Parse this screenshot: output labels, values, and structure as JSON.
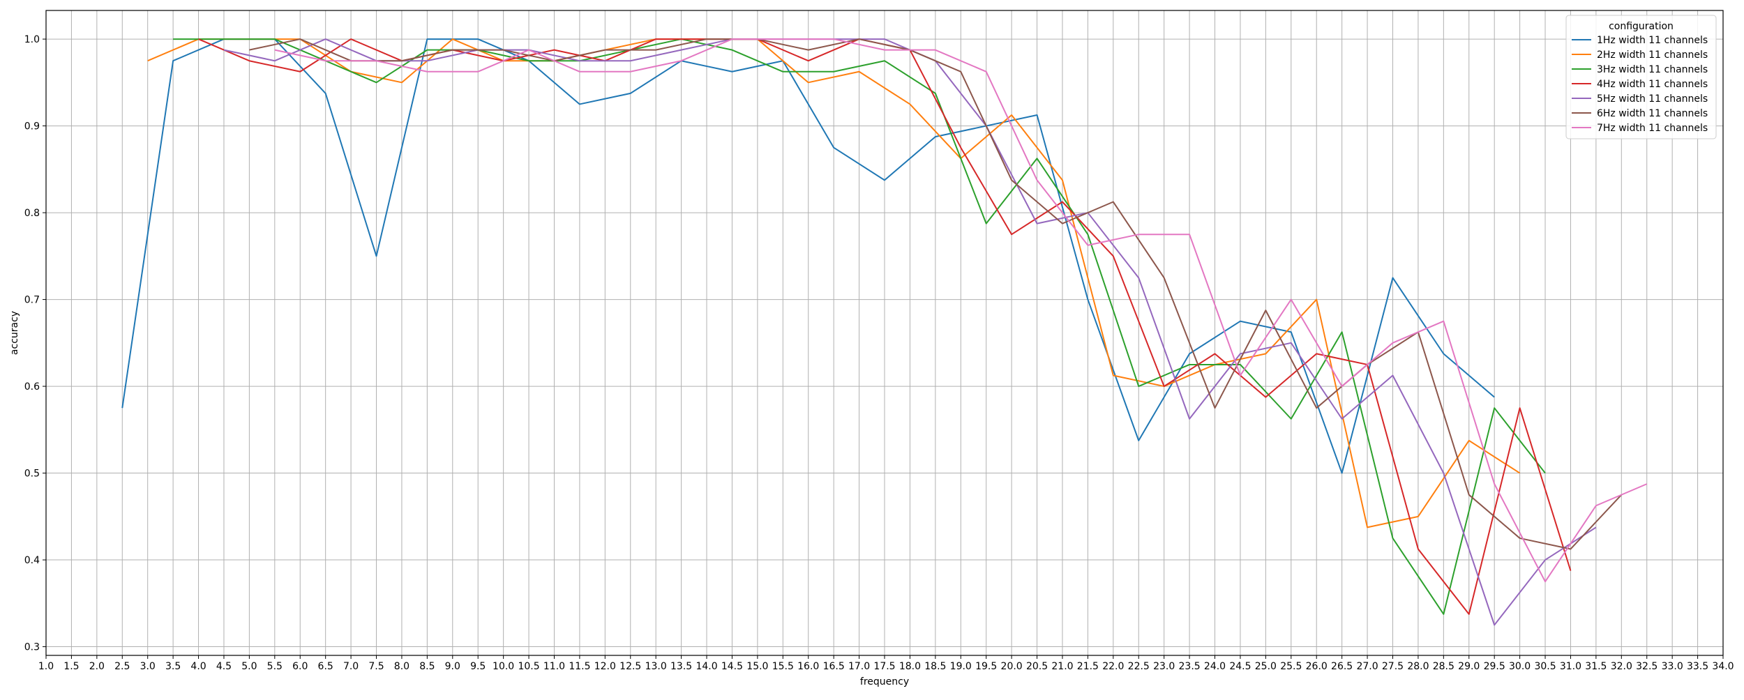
{
  "chart_data": {
    "type": "line",
    "title": "",
    "xlabel": "frequency",
    "ylabel": "accuracy",
    "xlim": [
      1.0,
      34.0
    ],
    "ylim": [
      0.29,
      1.033
    ],
    "xticks": [
      "1.0",
      "1.5",
      "2.0",
      "2.5",
      "3.0",
      "3.5",
      "4.0",
      "4.5",
      "5.0",
      "5.5",
      "6.0",
      "6.5",
      "7.0",
      "7.5",
      "8.0",
      "8.5",
      "9.0",
      "9.5",
      "10.0",
      "10.5",
      "11.0",
      "11.5",
      "12.0",
      "12.5",
      "13.0",
      "13.5",
      "14.0",
      "14.5",
      "15.0",
      "15.5",
      "16.0",
      "16.5",
      "17.0",
      "17.5",
      "18.0",
      "18.5",
      "19.0",
      "19.5",
      "20.0",
      "20.5",
      "21.0",
      "21.5",
      "22.0",
      "22.5",
      "23.0",
      "23.5",
      "24.0",
      "24.5",
      "25.0",
      "25.5",
      "26.0",
      "26.5",
      "27.0",
      "27.5",
      "28.0",
      "28.5",
      "29.0",
      "29.5",
      "30.0",
      "30.5",
      "31.0",
      "31.5",
      "32.0",
      "32.5",
      "33.0",
      "33.5",
      "34.0"
    ],
    "yticks": [
      "0.3",
      "0.4",
      "0.5",
      "0.6",
      "0.7",
      "0.8",
      "0.9",
      "1.0"
    ],
    "grid": true,
    "legend": {
      "title": "configuration",
      "position": "top-right"
    },
    "series": [
      {
        "name": "1Hz width 11 channels",
        "color": "#1f77b4",
        "x": [
          2.5,
          3.5,
          4.5,
          5.5,
          6.5,
          7.5,
          8.5,
          9.5,
          10.5,
          11.5,
          12.5,
          13.5,
          14.5,
          15.5,
          16.5,
          17.5,
          18.5,
          19.5,
          20.5,
          21.5,
          22.5,
          23.5,
          24.5,
          25.5,
          26.5,
          27.5,
          28.5,
          29.5
        ],
        "y": [
          0.575,
          0.975,
          1.0,
          1.0,
          0.9375,
          0.75,
          1.0,
          1.0,
          0.975,
          0.925,
          0.9375,
          0.975,
          0.9625,
          0.975,
          0.875,
          0.8375,
          0.8875,
          0.9,
          0.9125,
          0.7,
          0.5375,
          0.6375,
          0.675,
          0.6625,
          0.5,
          0.725,
          0.6375,
          0.5875
        ]
      },
      {
        "name": "2Hz width 11 channels",
        "color": "#ff7f0e",
        "x": [
          3.0,
          4.0,
          5.0,
          6.0,
          7.0,
          8.0,
          9.0,
          10.0,
          11.0,
          12.0,
          13.0,
          14.0,
          15.0,
          16.0,
          17.0,
          18.0,
          19.0,
          20.0,
          21.0,
          22.0,
          23.0,
          24.0,
          25.0,
          26.0,
          27.0,
          28.0,
          29.0,
          30.0
        ],
        "y": [
          0.975,
          1.0,
          1.0,
          1.0,
          0.9625,
          0.95,
          1.0,
          0.975,
          0.975,
          0.9875,
          1.0,
          1.0,
          1.0,
          0.95,
          0.9625,
          0.925,
          0.8625,
          0.9125,
          0.8375,
          0.6125,
          0.6,
          0.625,
          0.6375,
          0.7,
          0.4375,
          0.45,
          0.5375,
          0.5
        ]
      },
      {
        "name": "3Hz width 11 channels",
        "color": "#2ca02c",
        "x": [
          3.5,
          4.5,
          5.5,
          6.5,
          7.5,
          8.5,
          9.5,
          10.5,
          11.5,
          12.5,
          13.5,
          14.5,
          15.5,
          16.5,
          17.5,
          18.5,
          19.5,
          20.5,
          21.5,
          22.5,
          23.5,
          24.5,
          25.5,
          26.5,
          27.5,
          28.5,
          29.5,
          30.5
        ],
        "y": [
          1.0,
          1.0,
          1.0,
          0.975,
          0.95,
          0.9875,
          0.9875,
          0.975,
          0.975,
          0.9875,
          1.0,
          0.9875,
          0.9625,
          0.9625,
          0.975,
          0.9375,
          0.7875,
          0.8625,
          0.775,
          0.6,
          0.625,
          0.625,
          0.5625,
          0.6625,
          0.425,
          0.3375,
          0.575,
          0.5
        ]
      },
      {
        "name": "4Hz width 11 channels",
        "color": "#d62728",
        "x": [
          4.0,
          5.0,
          6.0,
          7.0,
          8.0,
          9.0,
          10.0,
          11.0,
          12.0,
          13.0,
          14.0,
          15.0,
          16.0,
          17.0,
          18.0,
          19.0,
          20.0,
          21.0,
          22.0,
          23.0,
          24.0,
          25.0,
          26.0,
          27.0,
          28.0,
          29.0,
          30.0,
          31.0
        ],
        "y": [
          1.0,
          0.975,
          0.9625,
          1.0,
          0.975,
          0.9875,
          0.975,
          0.9875,
          0.975,
          1.0,
          1.0,
          1.0,
          0.975,
          1.0,
          0.9875,
          0.875,
          0.775,
          0.8125,
          0.75,
          0.6,
          0.6375,
          0.5875,
          0.6375,
          0.625,
          0.4125,
          0.3375,
          0.575,
          0.3875
        ]
      },
      {
        "name": "5Hz width 11 channels",
        "color": "#9467bd",
        "x": [
          4.5,
          5.5,
          6.5,
          7.5,
          8.5,
          9.5,
          10.5,
          11.5,
          12.5,
          13.5,
          14.5,
          15.5,
          16.5,
          17.5,
          18.5,
          19.5,
          20.5,
          21.5,
          22.5,
          23.5,
          24.5,
          25.5,
          26.5,
          27.5,
          28.5,
          29.5,
          30.5,
          31.5
        ],
        "y": [
          0.9875,
          0.975,
          1.0,
          0.975,
          0.975,
          0.9875,
          0.9875,
          0.975,
          0.975,
          0.9875,
          1.0,
          1.0,
          1.0,
          1.0,
          0.975,
          0.9,
          0.7875,
          0.8,
          0.725,
          0.5625,
          0.6375,
          0.65,
          0.5625,
          0.6125,
          0.5,
          0.325,
          0.4,
          0.4375
        ]
      },
      {
        "name": "6Hz width 11 channels",
        "color": "#8c564b",
        "x": [
          5.0,
          6.0,
          7.0,
          8.0,
          9.0,
          10.0,
          11.0,
          12.0,
          13.0,
          14.0,
          15.0,
          16.0,
          17.0,
          18.0,
          19.0,
          20.0,
          21.0,
          22.0,
          23.0,
          24.0,
          25.0,
          26.0,
          27.0,
          28.0,
          29.0,
          30.0,
          31.0,
          32.0
        ],
        "y": [
          0.9875,
          1.0,
          0.975,
          0.975,
          0.9875,
          0.9875,
          0.975,
          0.9875,
          0.9875,
          1.0,
          1.0,
          0.9875,
          1.0,
          0.9875,
          0.9625,
          0.8375,
          0.7875,
          0.8125,
          0.725,
          0.575,
          0.6875,
          0.575,
          0.625,
          0.6625,
          0.475,
          0.425,
          0.4125,
          0.475
        ]
      },
      {
        "name": "7Hz width 11 channels",
        "color": "#e377c2",
        "x": [
          5.5,
          6.5,
          7.5,
          8.5,
          9.5,
          10.5,
          11.5,
          12.5,
          13.5,
          14.5,
          15.5,
          16.5,
          17.5,
          18.5,
          19.5,
          20.5,
          21.5,
          22.5,
          23.5,
          24.5,
          25.5,
          26.5,
          27.5,
          28.5,
          29.5,
          30.5,
          31.5,
          32.5
        ],
        "y": [
          0.9875,
          0.975,
          0.975,
          0.9625,
          0.9625,
          0.9875,
          0.9625,
          0.9625,
          0.975,
          1.0,
          1.0,
          1.0,
          0.9875,
          0.9875,
          0.9625,
          0.8375,
          0.7625,
          0.775,
          0.775,
          0.6125,
          0.7,
          0.6,
          0.65,
          0.675,
          0.4875,
          0.375,
          0.4625,
          0.4875
        ]
      }
    ]
  }
}
